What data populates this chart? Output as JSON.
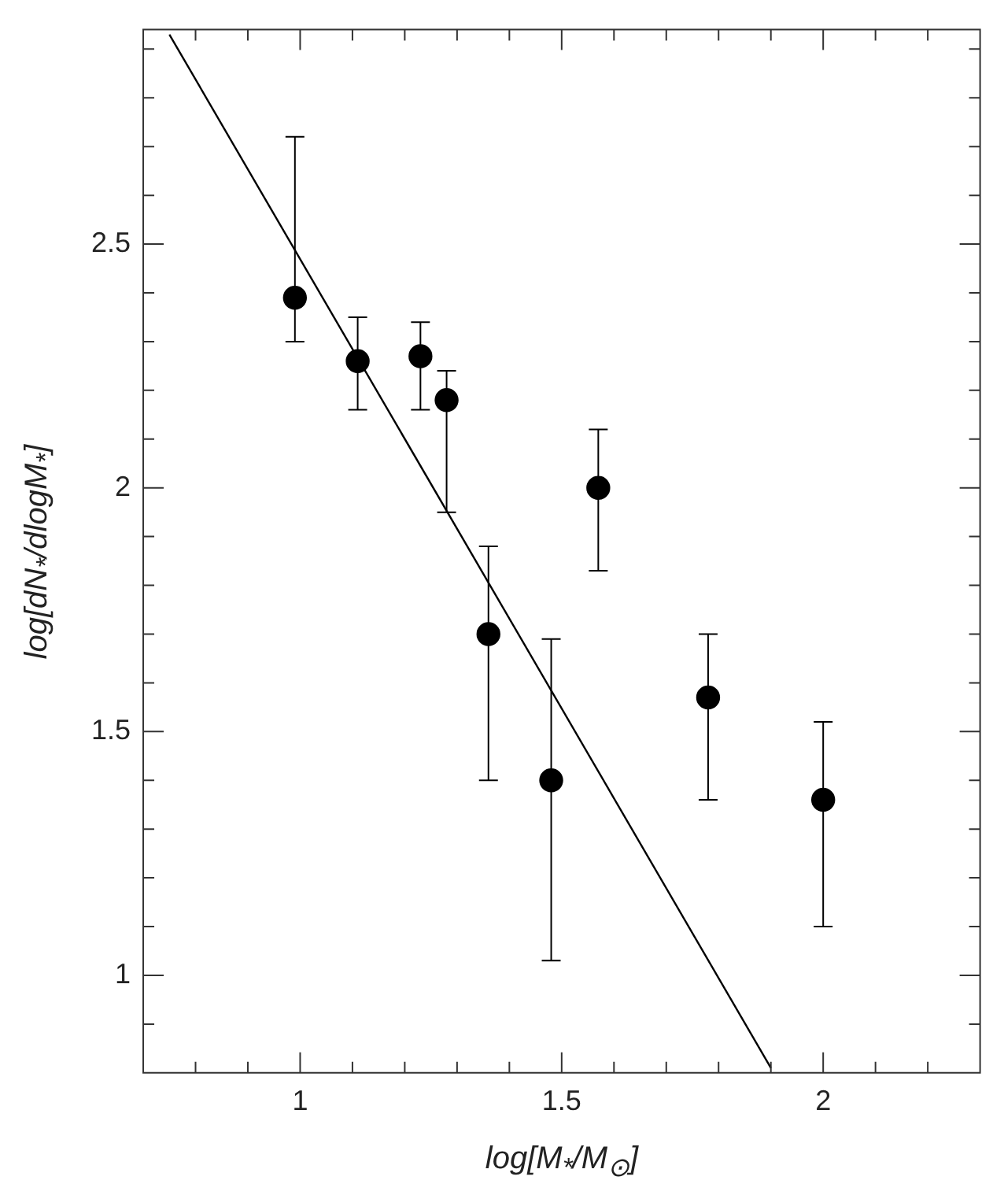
{
  "chart_data": {
    "type": "scatter",
    "xlabel": "log[M$_{*}$/M$_{⊙}$]",
    "ylabel": "log[dN$_{*}$/dlogM$_{*}$]",
    "xlim": [
      0.7,
      2.3
    ],
    "ylim": [
      0.8,
      2.94
    ],
    "xticks": [
      {
        "value": 0.8,
        "label": null
      },
      {
        "value": 0.9,
        "label": null
      },
      1,
      {
        "value": 1.1,
        "label": null
      },
      {
        "value": 1.2,
        "label": null
      },
      {
        "value": 1.3,
        "label": null
      },
      {
        "value": 1.4,
        "label": null
      },
      1.5,
      {
        "value": 1.6,
        "label": null
      },
      {
        "value": 1.7,
        "label": null
      },
      {
        "value": 1.8,
        "label": null
      },
      {
        "value": 1.9,
        "label": null
      },
      2,
      {
        "value": 2.1,
        "label": null
      },
      {
        "value": 2.2,
        "label": null
      }
    ],
    "yticks": [
      {
        "value": 0.9,
        "label": null
      },
      1,
      {
        "value": 1.1,
        "label": null
      },
      {
        "value": 1.2,
        "label": null
      },
      {
        "value": 1.3,
        "label": null
      },
      {
        "value": 1.4,
        "label": null
      },
      1.5,
      {
        "value": 1.6,
        "label": null
      },
      {
        "value": 1.7,
        "label": null
      },
      {
        "value": 1.8,
        "label": null
      },
      {
        "value": 1.9,
        "label": null
      },
      2,
      {
        "value": 2.1,
        "label": null
      },
      {
        "value": 2.2,
        "label": null
      },
      {
        "value": 2.3,
        "label": null
      },
      {
        "value": 2.4,
        "label": null
      },
      2.5,
      {
        "value": 2.6,
        "label": null
      },
      {
        "value": 2.7,
        "label": null
      },
      {
        "value": 2.8,
        "label": null
      },
      {
        "value": 2.9,
        "label": null
      }
    ],
    "grid": false,
    "legend": false,
    "series": [
      {
        "color": "#000000",
        "marker": "circle",
        "x": [
          0.99,
          1.11,
          1.23,
          1.28,
          1.36,
          1.48,
          1.57,
          1.78,
          2.0
        ],
        "values": [
          2.39,
          2.26,
          2.27,
          2.18,
          1.7,
          1.4,
          2.0,
          1.57,
          1.36
        ],
        "errors": [
          [
            2.3,
            2.72
          ],
          [
            2.16,
            2.35
          ],
          [
            2.16,
            2.34
          ],
          [
            1.95,
            2.24
          ],
          [
            1.4,
            1.88
          ],
          [
            1.03,
            1.69
          ],
          [
            1.83,
            2.12
          ],
          [
            1.36,
            1.7
          ],
          [
            1.1,
            1.52
          ]
        ]
      },
      {
        "type": "line",
        "color": "#000000",
        "marker": "none",
        "x": [
          0.75,
          1.9
        ],
        "values": [
          2.93,
          0.81
        ]
      }
    ]
  }
}
